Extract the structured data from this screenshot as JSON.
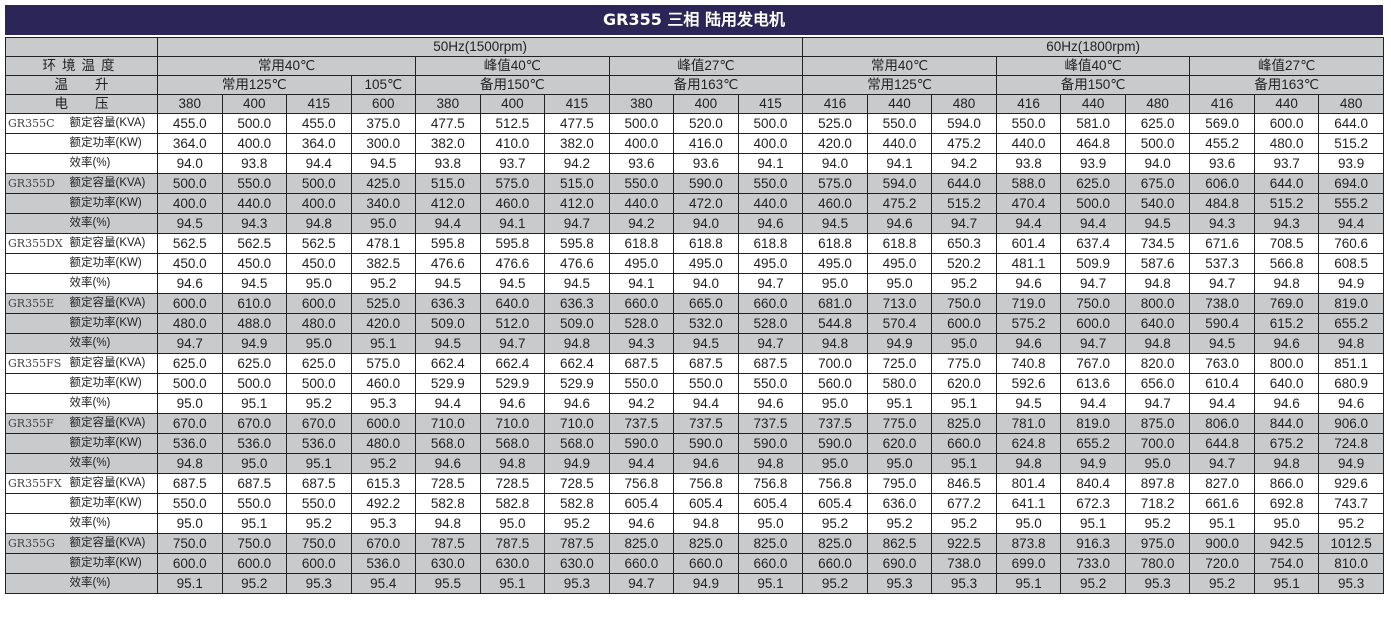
{
  "title": "GR355 三相 陆用发电机",
  "header": {
    "freq_50": "50Hz(1500rpm)",
    "freq_60": "60Hz(1800rpm)",
    "ambient_label": "环境温度",
    "rise_label": "温　　升",
    "voltage_label": "电　　压",
    "ambient": [
      "常用40℃",
      "峰值40℃",
      "峰值27℃",
      "常用40℃",
      "峰值40℃",
      "峰值27℃"
    ],
    "rise": [
      "常用125℃",
      "105℃",
      "备用150℃",
      "备用163℃",
      "常用125℃",
      "备用150℃",
      "备用163℃"
    ],
    "voltages": [
      "380",
      "400",
      "415",
      "600",
      "380",
      "400",
      "415",
      "380",
      "400",
      "415",
      "416",
      "440",
      "480",
      "416",
      "440",
      "480",
      "416",
      "440",
      "480"
    ]
  },
  "row_labels": [
    "额定容量(KVA)",
    "额定功率(KW)",
    "效率(%)"
  ],
  "models": [
    {
      "name": "GR355C",
      "rows": [
        [
          "455.0",
          "500.0",
          "455.0",
          "375.0",
          "477.5",
          "512.5",
          "477.5",
          "500.0",
          "520.0",
          "500.0",
          "525.0",
          "550.0",
          "594.0",
          "550.0",
          "581.0",
          "625.0",
          "569.0",
          "600.0",
          "644.0"
        ],
        [
          "364.0",
          "400.0",
          "364.0",
          "300.0",
          "382.0",
          "410.0",
          "382.0",
          "400.0",
          "416.0",
          "400.0",
          "420.0",
          "440.0",
          "475.2",
          "440.0",
          "464.8",
          "500.0",
          "455.2",
          "480.0",
          "515.2"
        ],
        [
          "94.0",
          "93.8",
          "94.4",
          "94.5",
          "93.8",
          "93.7",
          "94.2",
          "93.6",
          "93.6",
          "94.1",
          "94.0",
          "94.1",
          "94.2",
          "93.8",
          "93.9",
          "94.0",
          "93.6",
          "93.7",
          "93.9"
        ]
      ]
    },
    {
      "name": "GR355D",
      "rows": [
        [
          "500.0",
          "550.0",
          "500.0",
          "425.0",
          "515.0",
          "575.0",
          "515.0",
          "550.0",
          "590.0",
          "550.0",
          "575.0",
          "594.0",
          "644.0",
          "588.0",
          "625.0",
          "675.0",
          "606.0",
          "644.0",
          "694.0"
        ],
        [
          "400.0",
          "440.0",
          "400.0",
          "340.0",
          "412.0",
          "460.0",
          "412.0",
          "440.0",
          "472.0",
          "440.0",
          "460.0",
          "475.2",
          "515.2",
          "470.4",
          "500.0",
          "540.0",
          "484.8",
          "515.2",
          "555.2"
        ],
        [
          "94.5",
          "94.3",
          "94.8",
          "95.0",
          "94.4",
          "94.1",
          "94.7",
          "94.2",
          "94.0",
          "94.6",
          "94.5",
          "94.6",
          "94.7",
          "94.4",
          "94.4",
          "94.5",
          "94.3",
          "94.3",
          "94.4"
        ]
      ]
    },
    {
      "name": "GR355DX",
      "rows": [
        [
          "562.5",
          "562.5",
          "562.5",
          "478.1",
          "595.8",
          "595.8",
          "595.8",
          "618.8",
          "618.8",
          "618.8",
          "618.8",
          "618.8",
          "650.3",
          "601.4",
          "637.4",
          "734.5",
          "671.6",
          "708.5",
          "760.6"
        ],
        [
          "450.0",
          "450.0",
          "450.0",
          "382.5",
          "476.6",
          "476.6",
          "476.6",
          "495.0",
          "495.0",
          "495.0",
          "495.0",
          "495.0",
          "520.2",
          "481.1",
          "509.9",
          "587.6",
          "537.3",
          "566.8",
          "608.5"
        ],
        [
          "94.6",
          "94.5",
          "95.0",
          "95.2",
          "94.5",
          "94.5",
          "94.5",
          "94.1",
          "94.0",
          "94.7",
          "95.0",
          "95.0",
          "95.2",
          "94.6",
          "94.7",
          "94.8",
          "94.7",
          "94.8",
          "94.9"
        ]
      ]
    },
    {
      "name": "GR355E",
      "rows": [
        [
          "600.0",
          "610.0",
          "600.0",
          "525.0",
          "636.3",
          "640.0",
          "636.3",
          "660.0",
          "665.0",
          "660.0",
          "681.0",
          "713.0",
          "750.0",
          "719.0",
          "750.0",
          "800.0",
          "738.0",
          "769.0",
          "819.0"
        ],
        [
          "480.0",
          "488.0",
          "480.0",
          "420.0",
          "509.0",
          "512.0",
          "509.0",
          "528.0",
          "532.0",
          "528.0",
          "544.8",
          "570.4",
          "600.0",
          "575.2",
          "600.0",
          "640.0",
          "590.4",
          "615.2",
          "655.2"
        ],
        [
          "94.7",
          "94.9",
          "95.0",
          "95.1",
          "94.5",
          "94.7",
          "94.8",
          "94.3",
          "94.5",
          "94.7",
          "94.8",
          "94.9",
          "95.0",
          "94.6",
          "94.7",
          "94.8",
          "94.5",
          "94.6",
          "94.8"
        ]
      ]
    },
    {
      "name": "GR355FS",
      "rows": [
        [
          "625.0",
          "625.0",
          "625.0",
          "575.0",
          "662.4",
          "662.4",
          "662.4",
          "687.5",
          "687.5",
          "687.5",
          "700.0",
          "725.0",
          "775.0",
          "740.8",
          "767.0",
          "820.0",
          "763.0",
          "800.0",
          "851.1"
        ],
        [
          "500.0",
          "500.0",
          "500.0",
          "460.0",
          "529.9",
          "529.9",
          "529.9",
          "550.0",
          "550.0",
          "550.0",
          "560.0",
          "580.0",
          "620.0",
          "592.6",
          "613.6",
          "656.0",
          "610.4",
          "640.0",
          "680.9"
        ],
        [
          "95.0",
          "95.1",
          "95.2",
          "95.3",
          "94.4",
          "94.6",
          "94.6",
          "94.2",
          "94.4",
          "94.6",
          "95.0",
          "95.1",
          "95.1",
          "94.5",
          "94.4",
          "94.7",
          "94.4",
          "94.6",
          "94.6"
        ]
      ]
    },
    {
      "name": "GR355F",
      "rows": [
        [
          "670.0",
          "670.0",
          "670.0",
          "600.0",
          "710.0",
          "710.0",
          "710.0",
          "737.5",
          "737.5",
          "737.5",
          "737.5",
          "775.0",
          "825.0",
          "781.0",
          "819.0",
          "875.0",
          "806.0",
          "844.0",
          "906.0"
        ],
        [
          "536.0",
          "536.0",
          "536.0",
          "480.0",
          "568.0",
          "568.0",
          "568.0",
          "590.0",
          "590.0",
          "590.0",
          "590.0",
          "620.0",
          "660.0",
          "624.8",
          "655.2",
          "700.0",
          "644.8",
          "675.2",
          "724.8"
        ],
        [
          "94.8",
          "95.0",
          "95.1",
          "95.2",
          "94.6",
          "94.8",
          "94.9",
          "94.4",
          "94.6",
          "94.8",
          "95.0",
          "95.0",
          "95.1",
          "94.8",
          "94.9",
          "95.0",
          "94.7",
          "94.8",
          "94.9"
        ]
      ]
    },
    {
      "name": "GR355FX",
      "rows": [
        [
          "687.5",
          "687.5",
          "687.5",
          "615.3",
          "728.5",
          "728.5",
          "728.5",
          "756.8",
          "756.8",
          "756.8",
          "756.8",
          "795.0",
          "846.5",
          "801.4",
          "840.4",
          "897.8",
          "827.0",
          "866.0",
          "929.6"
        ],
        [
          "550.0",
          "550.0",
          "550.0",
          "492.2",
          "582.8",
          "582.8",
          "582.8",
          "605.4",
          "605.4",
          "605.4",
          "605.4",
          "636.0",
          "677.2",
          "641.1",
          "672.3",
          "718.2",
          "661.6",
          "692.8",
          "743.7"
        ],
        [
          "95.0",
          "95.1",
          "95.2",
          "95.3",
          "94.8",
          "95.0",
          "95.2",
          "94.6",
          "94.8",
          "95.0",
          "95.2",
          "95.2",
          "95.2",
          "95.0",
          "95.1",
          "95.2",
          "95.1",
          "95.0",
          "95.2"
        ]
      ]
    },
    {
      "name": "GR355G",
      "rows": [
        [
          "750.0",
          "750.0",
          "750.0",
          "670.0",
          "787.5",
          "787.5",
          "787.5",
          "825.0",
          "825.0",
          "825.0",
          "825.0",
          "862.5",
          "922.5",
          "873.8",
          "916.3",
          "975.0",
          "900.0",
          "942.5",
          "1012.5"
        ],
        [
          "600.0",
          "600.0",
          "600.0",
          "536.0",
          "630.0",
          "630.0",
          "630.0",
          "660.0",
          "660.0",
          "660.0",
          "660.0",
          "690.0",
          "738.0",
          "699.0",
          "733.0",
          "780.0",
          "720.0",
          "754.0",
          "810.0"
        ],
        [
          "95.1",
          "95.2",
          "95.3",
          "95.4",
          "95.5",
          "95.1",
          "95.3",
          "94.7",
          "94.9",
          "95.1",
          "95.2",
          "95.3",
          "95.3",
          "95.1",
          "95.2",
          "95.3",
          "95.2",
          "95.1",
          "95.3"
        ]
      ]
    }
  ],
  "colors": {
    "title_bg": "#2b2657",
    "shade": "#c9cacc"
  }
}
